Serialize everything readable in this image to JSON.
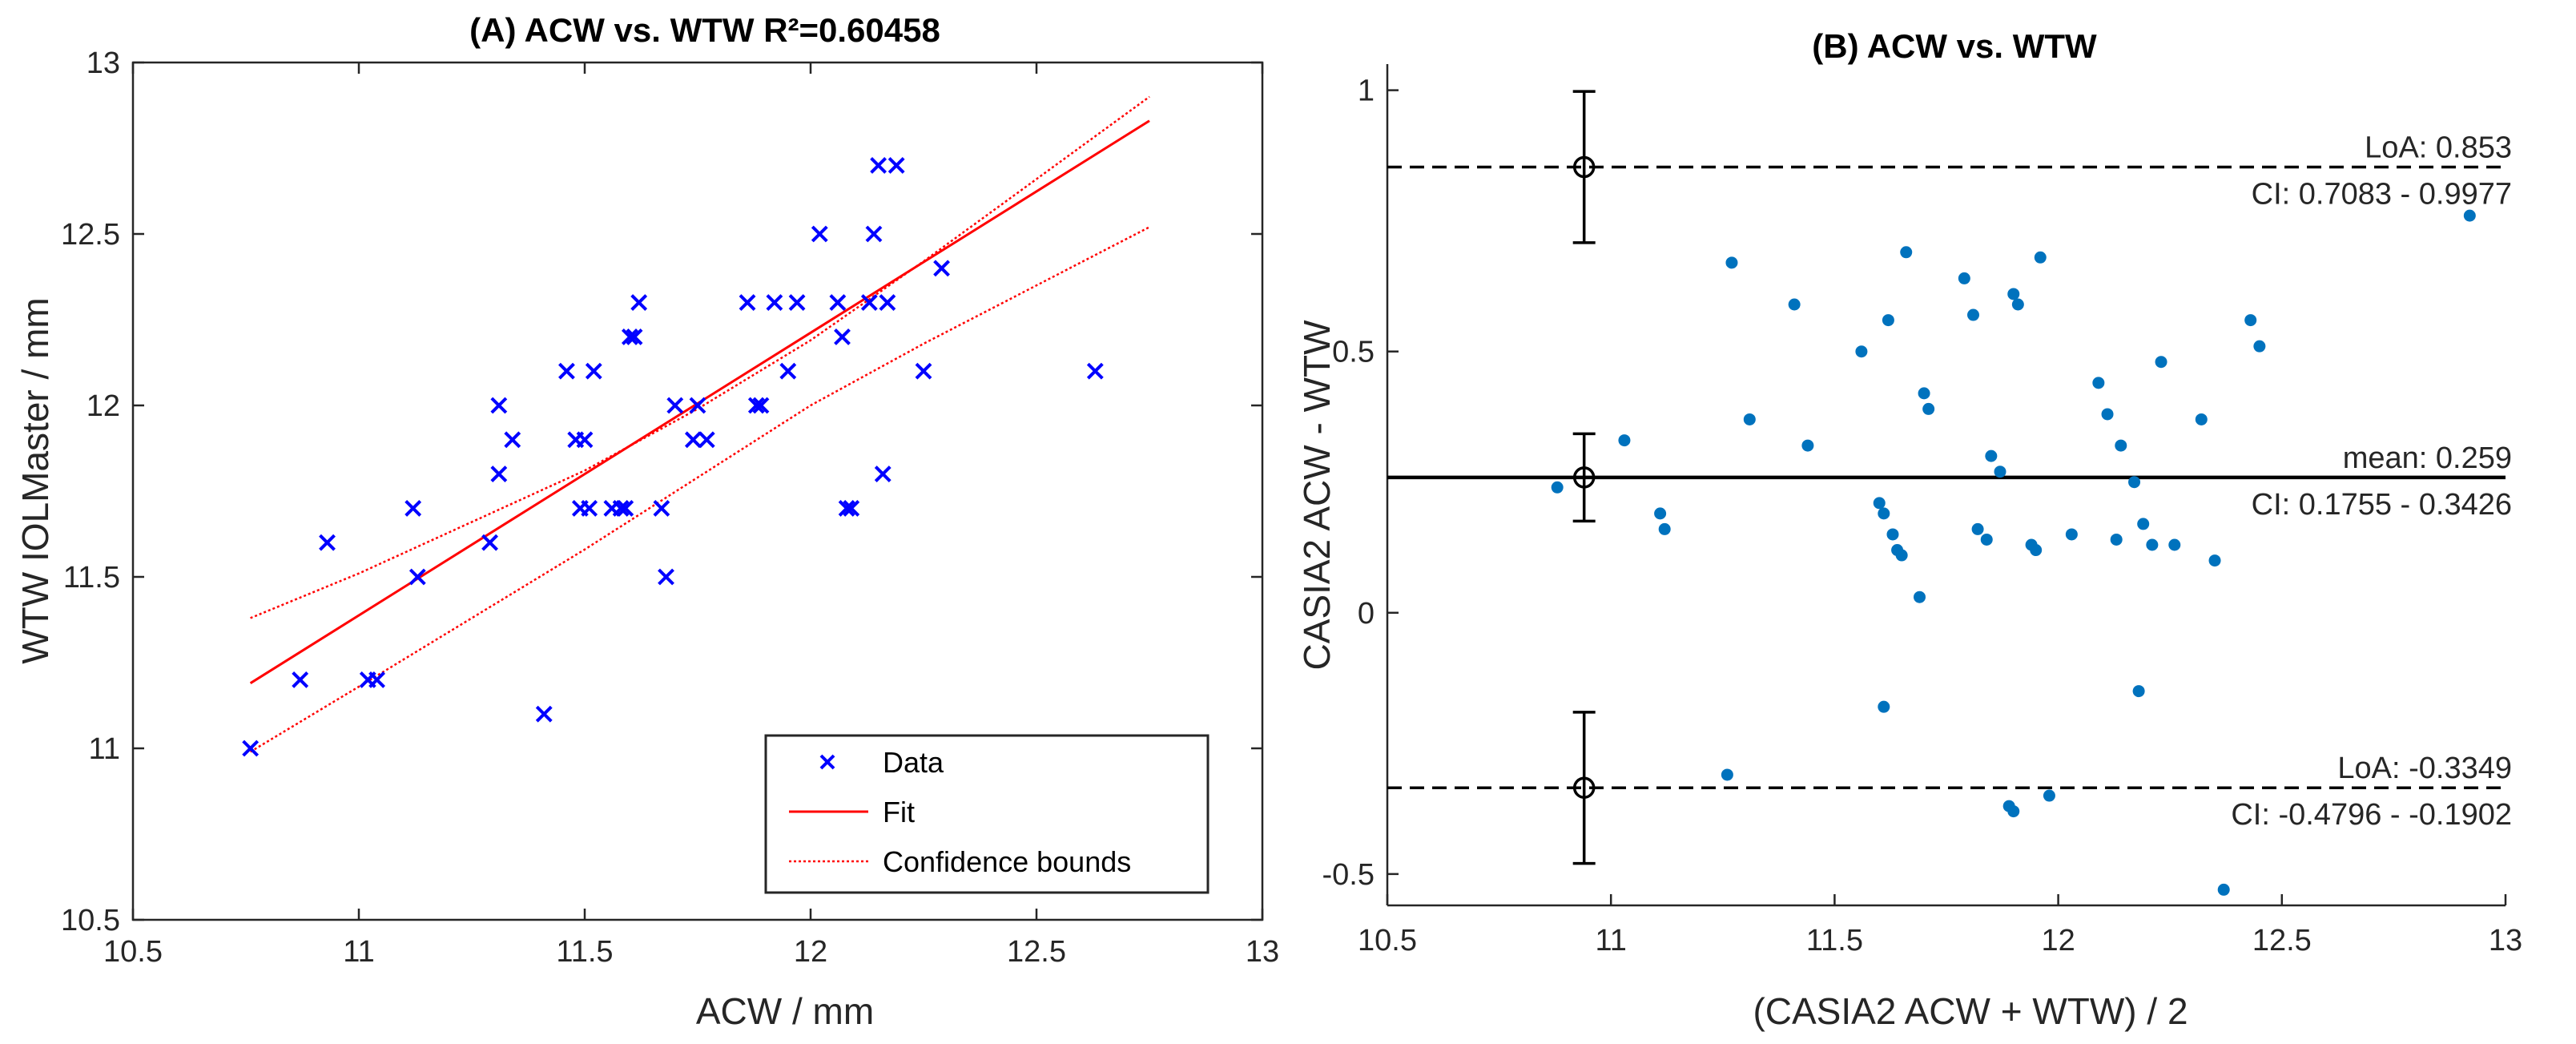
{
  "chart_data": [
    {
      "type": "scatter",
      "title": "(A) ACW vs. WTW R²=0.60458",
      "xlabel": "ACW / mm",
      "ylabel": "WTW IOLMaster / mm",
      "xlim": [
        10.5,
        13
      ],
      "ylim": [
        10.5,
        13
      ],
      "xticks": [
        "10.5",
        "11",
        "11.5",
        "12",
        "12.5",
        "13"
      ],
      "yticks": [
        "10.5",
        "11",
        "11.5",
        "12",
        "12.5",
        "13"
      ],
      "colors": {
        "data": "#0000ff",
        "fit": "#ff0000",
        "bounds": "#ff0000"
      },
      "series": [
        {
          "name": "Data",
          "x": [
            10.76,
            10.87,
            10.93,
            11.02,
            11.04,
            11.12,
            11.13,
            11.29,
            11.31,
            11.31,
            11.34,
            11.41,
            11.46,
            11.48,
            11.49,
            11.5,
            11.51,
            11.52,
            11.56,
            11.58,
            11.59,
            11.6,
            11.61,
            11.62,
            11.67,
            11.68,
            11.7,
            11.74,
            11.75,
            11.77,
            11.86,
            11.88,
            11.89,
            11.92,
            11.95,
            11.97,
            12.02,
            12.06,
            12.07,
            12.08,
            12.09,
            12.13,
            12.14,
            12.15,
            12.16,
            12.17,
            12.19,
            12.25,
            12.29,
            12.63
          ],
          "y": [
            11.0,
            11.2,
            11.6,
            11.2,
            11.2,
            11.7,
            11.5,
            11.6,
            11.8,
            12.0,
            11.9,
            11.1,
            12.1,
            11.9,
            11.7,
            11.9,
            11.7,
            12.1,
            11.7,
            11.7,
            11.7,
            12.2,
            12.2,
            12.3,
            11.7,
            11.5,
            12.0,
            11.9,
            12.0,
            11.9,
            12.3,
            12.0,
            12.0,
            12.3,
            12.1,
            12.3,
            12.5,
            12.3,
            12.2,
            11.7,
            11.7,
            12.3,
            12.5,
            12.7,
            11.8,
            12.3,
            12.7,
            12.1,
            12.4,
            12.1
          ]
        },
        {
          "name": "Fit",
          "x": [
            10.76,
            12.75
          ],
          "y": [
            11.19,
            12.83
          ]
        },
        {
          "name": "Confidence bounds",
          "upper": {
            "x": [
              10.76,
              11.0,
              11.25,
              11.5,
              11.75,
              12.0,
              12.25,
              12.5,
              12.75
            ],
            "y": [
              11.38,
              11.51,
              11.66,
              11.81,
              11.99,
              12.19,
              12.42,
              12.66,
              12.9
            ]
          },
          "lower": {
            "x": [
              10.76,
              11.0,
              11.25,
              11.5,
              11.75,
              12.0,
              12.25,
              12.5,
              12.75
            ],
            "y": [
              10.99,
              11.18,
              11.38,
              11.58,
              11.79,
              12.0,
              12.18,
              12.35,
              12.52
            ]
          }
        }
      ],
      "legend": {
        "position": "bottom-right",
        "entries": [
          "Data",
          "Fit",
          "Confidence bounds"
        ]
      }
    },
    {
      "type": "scatter",
      "title": "(B) ACW vs. WTW",
      "xlabel": "(CASIA2 ACW + WTW) / 2",
      "ylabel": "CASIA2 ACW - WTW",
      "xlim": [
        10.5,
        13
      ],
      "ylim": [
        -0.56,
        1.05
      ],
      "xticks": [
        "10.5",
        "11",
        "11.5",
        "12",
        "12.5",
        "13"
      ],
      "yticks": [
        "-0.5",
        "0",
        "0.5",
        "1"
      ],
      "colors": {
        "points": "#0072bd",
        "lines": "#000000"
      },
      "points": {
        "x": [
          10.88,
          11.03,
          11.11,
          11.12,
          11.26,
          11.27,
          11.31,
          11.41,
          11.44,
          11.56,
          11.6,
          11.61,
          11.61,
          11.62,
          11.63,
          11.64,
          11.65,
          11.66,
          11.69,
          11.7,
          11.71,
          11.79,
          11.81,
          11.82,
          11.84,
          11.85,
          11.87,
          11.89,
          11.9,
          11.9,
          11.91,
          11.94,
          11.95,
          11.96,
          11.98,
          12.03,
          12.09,
          12.11,
          12.13,
          12.14,
          12.17,
          12.18,
          12.19,
          12.21,
          12.23,
          12.26,
          12.32,
          12.35,
          12.37,
          12.43,
          12.45,
          12.92
        ],
        "y": [
          0.24,
          0.33,
          0.19,
          0.16,
          -0.31,
          0.67,
          0.37,
          0.59,
          0.32,
          0.5,
          0.21,
          0.19,
          -0.18,
          0.56,
          0.15,
          0.12,
          0.11,
          0.69,
          0.03,
          0.42,
          0.39,
          0.64,
          0.57,
          0.16,
          0.14,
          0.3,
          0.27,
          -0.37,
          -0.38,
          0.61,
          0.59,
          0.13,
          0.12,
          0.68,
          -0.35,
          0.15,
          0.44,
          0.38,
          0.14,
          0.32,
          0.25,
          -0.15,
          0.17,
          0.13,
          0.48,
          0.13,
          0.37,
          0.1,
          -0.53,
          0.56,
          0.51,
          0.76
        ]
      },
      "lines": [
        {
          "name": "upper LoA",
          "y": 0.853,
          "style": "dashed",
          "ci": [
            0.7083,
            0.9977
          ],
          "label": "LoA: 0.853",
          "ci_label": "CI: 0.7083 - 0.9977"
        },
        {
          "name": "mean",
          "y": 0.259,
          "style": "solid",
          "ci": [
            0.1755,
            0.3426
          ],
          "label": "mean: 0.259",
          "ci_label": "CI: 0.1755 - 0.3426"
        },
        {
          "name": "lower LoA",
          "y": -0.3349,
          "style": "dashed",
          "ci": [
            -0.4796,
            -0.1902
          ],
          "label": "LoA: -0.3349",
          "ci_label": "CI: -0.4796 - -0.1902"
        }
      ],
      "errorbar_x": 10.94
    }
  ]
}
